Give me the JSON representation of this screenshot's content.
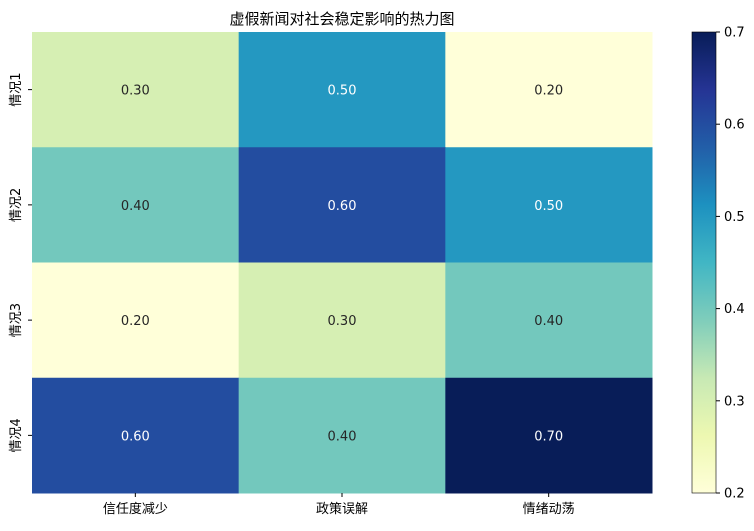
{
  "chart_data": {
    "type": "heatmap",
    "title": "虚假新闻对社会稳定影响的热力图",
    "xlabel": "",
    "ylabel": "",
    "x_categories": [
      "信任度减少",
      "政策误解",
      "情绪动荡"
    ],
    "y_categories": [
      "情况1",
      "情况2",
      "情况3",
      "情况4"
    ],
    "values": [
      [
        0.3,
        0.5,
        0.2
      ],
      [
        0.4,
        0.6,
        0.5
      ],
      [
        0.2,
        0.3,
        0.4
      ],
      [
        0.6,
        0.4,
        0.7
      ]
    ],
    "cell_labels": [
      [
        "0.30",
        "0.50",
        "0.20"
      ],
      [
        "0.40",
        "0.60",
        "0.50"
      ],
      [
        "0.20",
        "0.30",
        "0.40"
      ],
      [
        "0.60",
        "0.40",
        "0.70"
      ]
    ],
    "colormap": "YlGnBu",
    "colorscale_stops": [
      "#ffffd9",
      "#edf8b1",
      "#c7e9b4",
      "#7fcdbb",
      "#41b6c4",
      "#1d91c0",
      "#225ea8",
      "#253494",
      "#081d58"
    ],
    "colorbar": {
      "range": [
        0.2,
        0.7
      ],
      "tick_values": [
        0.2,
        0.3,
        0.4,
        0.5,
        0.6,
        0.7
      ],
      "tick_labels": [
        "0.2",
        "0.3",
        "0.4",
        "0.5",
        "0.6",
        "0.7"
      ]
    },
    "grid": false
  }
}
